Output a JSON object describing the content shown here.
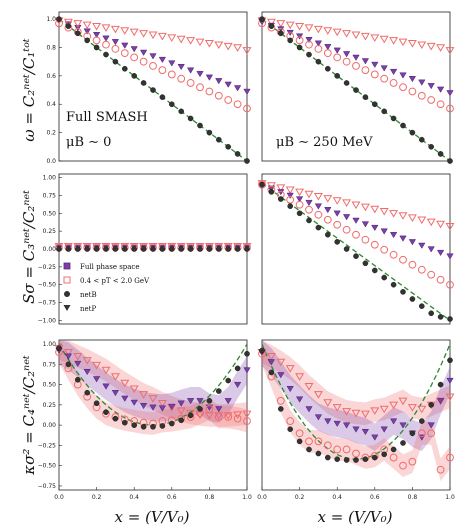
{
  "figure": {
    "ylabels": [
      "ω = C₂ⁿᵉᵗ/C₁ᵗᵒᵗ",
      "Sσ = C₃ⁿᵉᵗ/C₂ⁿᵉᵗ",
      "κσ² = C₄ⁿᵉᵗ/C₂ⁿᵉᵗ"
    ],
    "xlabel": "x = (V/V₀)",
    "annotations": {
      "left_top_line1": "Full SMASH",
      "left_top_line2": "μB ∼ 0",
      "right_top": "μB ∼ 250 MeV"
    },
    "legend": {
      "entries": [
        {
          "label": "Full phase space",
          "marker": "square-filled",
          "color": "#7b3fa8"
        },
        {
          "label": "0.4 < pT < 2.0 GeV",
          "marker": "square-open",
          "color": "#f06c6c"
        },
        {
          "label": "netB",
          "marker": "circle",
          "color": "#333333"
        },
        {
          "label": "netP",
          "marker": "triangle-down",
          "color": "#333333"
        }
      ]
    },
    "colors": {
      "purple": "#7b3fa8",
      "pink": "#f06c6c",
      "dark": "#333333",
      "theory": "#2a8a2a"
    }
  },
  "chart_data": [
    {
      "type": "scatter",
      "panel": "row1-left",
      "xlim": [
        0,
        1
      ],
      "ylim": [
        0,
        1.05
      ],
      "yticks": [
        "0.0",
        "0.2",
        "0.4",
        "0.6",
        "0.8",
        "1.0"
      ],
      "x": [
        0.0,
        0.05,
        0.1,
        0.15,
        0.2,
        0.25,
        0.3,
        0.35,
        0.4,
        0.45,
        0.5,
        0.55,
        0.6,
        0.65,
        0.7,
        0.75,
        0.8,
        0.85,
        0.9,
        0.95,
        1.0
      ],
      "series": [
        {
          "name": "Full phase space, netP",
          "color": "#7b3fa8",
          "marker": "tri-filled",
          "values": [
            0.99,
            0.965,
            0.94,
            0.915,
            0.89,
            0.865,
            0.84,
            0.815,
            0.79,
            0.765,
            0.74,
            0.715,
            0.69,
            0.665,
            0.64,
            0.615,
            0.59,
            0.565,
            0.54,
            0.515,
            0.49
          ]
        },
        {
          "name": "0.4<pT<2.0, netP",
          "color": "#f06c6c",
          "marker": "tri-open",
          "values": [
            0.99,
            0.98,
            0.97,
            0.96,
            0.95,
            0.94,
            0.93,
            0.92,
            0.91,
            0.9,
            0.89,
            0.88,
            0.87,
            0.86,
            0.85,
            0.84,
            0.83,
            0.82,
            0.81,
            0.8,
            0.78
          ]
        },
        {
          "name": "0.4<pT<2.0, netB",
          "color": "#f06c6c",
          "marker": "circle-open",
          "values": [
            0.97,
            0.94,
            0.91,
            0.88,
            0.85,
            0.82,
            0.79,
            0.76,
            0.73,
            0.7,
            0.67,
            0.64,
            0.61,
            0.58,
            0.55,
            0.52,
            0.49,
            0.46,
            0.43,
            0.4,
            0.37
          ]
        },
        {
          "name": "Full phase space, netB",
          "color": "#333333",
          "marker": "circle-filled",
          "values": [
            1.0,
            0.95,
            0.9,
            0.85,
            0.8,
            0.75,
            0.7,
            0.65,
            0.6,
            0.55,
            0.5,
            0.45,
            0.4,
            0.35,
            0.3,
            0.25,
            0.2,
            0.15,
            0.1,
            0.05,
            0.0
          ]
        }
      ],
      "theory": [
        [
          0,
          1.0
        ],
        [
          1,
          0.0
        ]
      ]
    },
    {
      "type": "scatter",
      "panel": "row1-right",
      "xlim": [
        0,
        1
      ],
      "ylim": [
        0,
        1.05
      ],
      "x": [
        0.0,
        0.05,
        0.1,
        0.15,
        0.2,
        0.25,
        0.3,
        0.35,
        0.4,
        0.45,
        0.5,
        0.55,
        0.6,
        0.65,
        0.7,
        0.75,
        0.8,
        0.85,
        0.9,
        0.95,
        1.0
      ],
      "series": [
        {
          "name": "0.4<pT<2.0, netP",
          "color": "#f06c6c",
          "marker": "tri-open",
          "values": [
            0.99,
            0.98,
            0.97,
            0.96,
            0.95,
            0.94,
            0.93,
            0.92,
            0.91,
            0.9,
            0.89,
            0.88,
            0.87,
            0.86,
            0.85,
            0.84,
            0.83,
            0.82,
            0.81,
            0.8,
            0.78
          ]
        },
        {
          "name": "Full phase space, netP",
          "color": "#7b3fa8",
          "marker": "tri-filled",
          "values": [
            0.98,
            0.955,
            0.93,
            0.905,
            0.88,
            0.855,
            0.83,
            0.805,
            0.78,
            0.755,
            0.73,
            0.705,
            0.68,
            0.655,
            0.63,
            0.605,
            0.58,
            0.555,
            0.53,
            0.505,
            0.48
          ]
        },
        {
          "name": "0.4<pT<2.0, netB",
          "color": "#f06c6c",
          "marker": "circle-open",
          "values": [
            0.97,
            0.94,
            0.91,
            0.88,
            0.85,
            0.82,
            0.79,
            0.76,
            0.73,
            0.7,
            0.67,
            0.64,
            0.61,
            0.58,
            0.55,
            0.52,
            0.49,
            0.46,
            0.43,
            0.4,
            0.37
          ]
        },
        {
          "name": "Full phase space, netB",
          "color": "#333333",
          "marker": "circle-filled",
          "values": [
            1.0,
            0.95,
            0.9,
            0.85,
            0.8,
            0.75,
            0.7,
            0.65,
            0.6,
            0.55,
            0.5,
            0.45,
            0.4,
            0.35,
            0.3,
            0.25,
            0.2,
            0.15,
            0.1,
            0.05,
            0.0
          ]
        }
      ],
      "theory": [
        [
          0,
          1.0
        ],
        [
          1,
          0.0
        ]
      ]
    },
    {
      "type": "scatter",
      "panel": "row2-left",
      "xlim": [
        0,
        1
      ],
      "ylim": [
        -1.05,
        1.05
      ],
      "yticks": [
        "−1.00",
        "−0.75",
        "−0.50",
        "−0.25",
        "0.00",
        "0.25",
        "0.50",
        "0.75",
        "1.00"
      ],
      "x": [
        0.0,
        0.05,
        0.1,
        0.15,
        0.2,
        0.25,
        0.3,
        0.35,
        0.4,
        0.45,
        0.5,
        0.55,
        0.6,
        0.65,
        0.7,
        0.75,
        0.8,
        0.85,
        0.9,
        0.95,
        1.0
      ],
      "series": [
        {
          "name": "0.4<pT<2.0, netP",
          "color": "#f06c6c",
          "marker": "tri-open",
          "values": [
            0.04,
            0.04,
            0.04,
            0.04,
            0.04,
            0.04,
            0.04,
            0.04,
            0.04,
            0.04,
            0.04,
            0.04,
            0.04,
            0.04,
            0.04,
            0.04,
            0.04,
            0.04,
            0.04,
            0.04,
            0.04
          ]
        },
        {
          "name": "Full phase space, netP",
          "color": "#7b3fa8",
          "marker": "tri-filled",
          "values": [
            0.02,
            0.02,
            0.02,
            0.02,
            0.02,
            0.02,
            0.02,
            0.02,
            0.02,
            0.02,
            0.02,
            0.02,
            0.02,
            0.02,
            0.02,
            0.02,
            0.02,
            0.02,
            0.02,
            0.02,
            0.02
          ]
        },
        {
          "name": "0.4<pT<2.0, netB",
          "color": "#f06c6c",
          "marker": "circle-open",
          "values": [
            0.02,
            0.02,
            0.02,
            0.02,
            0.02,
            0.02,
            0.02,
            0.02,
            0.02,
            0.02,
            0.02,
            0.02,
            0.02,
            0.02,
            0.02,
            0.02,
            0.02,
            0.02,
            0.02,
            0.02,
            0.02
          ]
        },
        {
          "name": "Full phase space, netB",
          "color": "#333333",
          "marker": "circle-filled",
          "values": [
            0.0,
            0.0,
            0.0,
            0.0,
            0.0,
            0.0,
            0.0,
            0.0,
            0.0,
            0.0,
            0.0,
            0.0,
            0.0,
            0.0,
            0.0,
            0.0,
            0.0,
            0.0,
            0.0,
            0.0,
            0.0
          ]
        }
      ]
    },
    {
      "type": "scatter",
      "panel": "row2-right",
      "xlim": [
        0,
        1
      ],
      "ylim": [
        -1.05,
        1.05
      ],
      "x": [
        0.0,
        0.05,
        0.1,
        0.15,
        0.2,
        0.25,
        0.3,
        0.35,
        0.4,
        0.45,
        0.5,
        0.55,
        0.6,
        0.65,
        0.7,
        0.75,
        0.8,
        0.85,
        0.9,
        0.95,
        1.0
      ],
      "series": [
        {
          "name": "0.4<pT<2.0, netP",
          "color": "#f06c6c",
          "marker": "tri-open",
          "values": [
            0.92,
            0.89,
            0.86,
            0.83,
            0.8,
            0.77,
            0.74,
            0.71,
            0.68,
            0.65,
            0.62,
            0.59,
            0.56,
            0.53,
            0.5,
            0.47,
            0.44,
            0.41,
            0.38,
            0.35,
            0.32
          ]
        },
        {
          "name": "Full phase space, netP",
          "color": "#7b3fa8",
          "marker": "tri-filled",
          "values": [
            0.9,
            0.85,
            0.8,
            0.75,
            0.7,
            0.65,
            0.6,
            0.55,
            0.5,
            0.45,
            0.4,
            0.35,
            0.3,
            0.25,
            0.2,
            0.15,
            0.1,
            0.05,
            0.0,
            -0.05,
            -0.1
          ]
        },
        {
          "name": "0.4<pT<2.0, netB",
          "color": "#f06c6c",
          "marker": "circle-open",
          "values": [
            0.9,
            0.83,
            0.76,
            0.69,
            0.62,
            0.55,
            0.48,
            0.41,
            0.34,
            0.27,
            0.2,
            0.13,
            0.06,
            -0.01,
            -0.08,
            -0.15,
            -0.22,
            -0.29,
            -0.36,
            -0.43,
            -0.5
          ]
        },
        {
          "name": "Full phase space, netB",
          "color": "#333333",
          "marker": "circle-filled",
          "values": [
            0.9,
            0.8,
            0.7,
            0.6,
            0.5,
            0.4,
            0.3,
            0.2,
            0.1,
            0.0,
            -0.1,
            -0.2,
            -0.3,
            -0.4,
            -0.5,
            -0.6,
            -0.7,
            -0.8,
            -0.9,
            -0.95,
            -0.98
          ]
        }
      ],
      "theory": [
        [
          0,
          0.92
        ],
        [
          1,
          -1.0
        ]
      ]
    },
    {
      "type": "scatter",
      "panel": "row3-left",
      "xlim": [
        0,
        1
      ],
      "ylim": [
        -0.8,
        1.05
      ],
      "yticks": [
        "−0.75",
        "−0.50",
        "−0.25",
        "0.00",
        "0.25",
        "0.50",
        "0.75",
        "1.00"
      ],
      "xticks": [
        "0.0",
        "0.2",
        "0.4",
        "0.6",
        "0.8",
        "1.0"
      ],
      "x": [
        0.0,
        0.05,
        0.1,
        0.15,
        0.2,
        0.25,
        0.3,
        0.35,
        0.4,
        0.45,
        0.5,
        0.55,
        0.6,
        0.65,
        0.7,
        0.75,
        0.8,
        0.85,
        0.9,
        0.95,
        1.0
      ],
      "series": [
        {
          "name": "0.4<pT<2.0, netP",
          "color": "#f06c6c",
          "marker": "tri-open",
          "values": [
            0.95,
            0.9,
            0.85,
            0.8,
            0.74,
            0.68,
            0.6,
            0.52,
            0.45,
            0.38,
            0.33,
            0.27,
            0.22,
            0.18,
            0.15,
            0.13,
            0.12,
            0.12,
            0.12,
            0.13,
            0.14
          ]
        },
        {
          "name": "Full phase space, netP",
          "color": "#7b3fa8",
          "marker": "tri-filled",
          "values": [
            0.92,
            0.85,
            0.76,
            0.66,
            0.57,
            0.48,
            0.4,
            0.33,
            0.28,
            0.24,
            0.22,
            0.21,
            0.23,
            0.27,
            0.3,
            0.3,
            0.22,
            0.2,
            0.3,
            0.5,
            0.68
          ]
        },
        {
          "name": "0.4<pT<2.0, netB",
          "color": "#f06c6c",
          "marker": "circle-open",
          "values": [
            0.9,
            0.7,
            0.5,
            0.35,
            0.22,
            0.14,
            0.1,
            0.07,
            0.05,
            0.03,
            0.02,
            0.05,
            0.06,
            0.08,
            0.1,
            0.15,
            0.2,
            0.1,
            0.1,
            0.08,
            0.05
          ]
        },
        {
          "name": "Full phase space, netB",
          "color": "#333333",
          "marker": "circle-filled",
          "values": [
            0.95,
            0.75,
            0.56,
            0.4,
            0.27,
            0.16,
            0.08,
            0.03,
            0.0,
            -0.02,
            -0.02,
            -0.01,
            0.02,
            0.06,
            0.12,
            0.2,
            0.3,
            0.42,
            0.55,
            0.7,
            0.88
          ]
        }
      ],
      "theory": "parabola"
    },
    {
      "type": "scatter",
      "panel": "row3-right",
      "xlim": [
        0,
        1
      ],
      "ylim": [
        -0.8,
        1.05
      ],
      "xticks": [
        "0.0",
        "0.2",
        "0.4",
        "0.6",
        "0.8",
        "1.0"
      ],
      "x": [
        0.0,
        0.05,
        0.1,
        0.15,
        0.2,
        0.25,
        0.3,
        0.35,
        0.4,
        0.45,
        0.5,
        0.55,
        0.6,
        0.65,
        0.7,
        0.75,
        0.8,
        0.85,
        0.9,
        0.95,
        1.0
      ],
      "series": [
        {
          "name": "0.4<pT<2.0, netP",
          "color": "#f06c6c",
          "marker": "tri-open",
          "values": [
            0.9,
            0.85,
            0.78,
            0.7,
            0.6,
            0.48,
            0.38,
            0.28,
            0.22,
            0.17,
            0.15,
            0.14,
            0.18,
            0.2,
            0.25,
            0.3,
            0.22,
            0.2,
            0.25,
            0.3,
            0.35
          ]
        },
        {
          "name": "Full phase space, netP",
          "color": "#7b3fa8",
          "marker": "tri-filled",
          "values": [
            0.9,
            0.78,
            0.62,
            0.45,
            0.32,
            0.2,
            0.1,
            0.05,
            0.02,
            0.0,
            -0.05,
            -0.08,
            -0.15,
            -0.05,
            0.05,
            0.0,
            -0.1,
            -0.15,
            0.0,
            0.3,
            0.55
          ]
        },
        {
          "name": "0.4<pT<2.0, netB",
          "color": "#f06c6c",
          "marker": "circle-open",
          "values": [
            0.88,
            0.6,
            0.3,
            0.05,
            -0.1,
            -0.2,
            -0.2,
            -0.25,
            -0.3,
            -0.3,
            -0.35,
            -0.4,
            -0.38,
            -0.3,
            -0.4,
            -0.5,
            -0.45,
            -0.1,
            -0.1,
            -0.55,
            -0.4
          ]
        },
        {
          "name": "Full phase space, netB",
          "color": "#333333",
          "marker": "circle-filled",
          "values": [
            0.92,
            0.65,
            0.2,
            -0.05,
            -0.2,
            -0.3,
            -0.35,
            -0.4,
            -0.42,
            -0.43,
            -0.43,
            -0.42,
            -0.4,
            -0.36,
            -0.3,
            -0.22,
            -0.1,
            0.05,
            0.25,
            0.5,
            0.8
          ]
        }
      ],
      "theory": "parabola-deep"
    }
  ]
}
